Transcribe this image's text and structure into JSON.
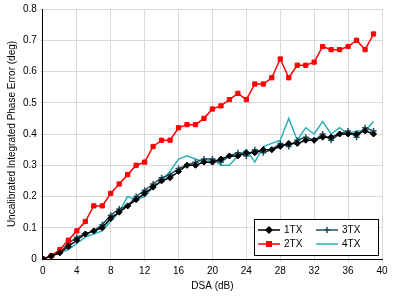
{
  "chart_data": {
    "type": "line",
    "x_label": "DSA (dB)",
    "y_label": "Uncalibrated Integrated Phase Error (deg)",
    "x": [
      0,
      1,
      2,
      3,
      4,
      5,
      6,
      7,
      8,
      9,
      10,
      11,
      12,
      13,
      14,
      15,
      16,
      17,
      18,
      19,
      20,
      21,
      22,
      23,
      24,
      25,
      26,
      27,
      28,
      29,
      30,
      31,
      32,
      33,
      34,
      35,
      36,
      37,
      38,
      39
    ],
    "series": [
      {
        "name": "1TX",
        "color": "#000000",
        "marker": "diamond",
        "values": [
          0,
          0.01,
          0.02,
          0.04,
          0.06,
          0.08,
          0.09,
          0.1,
          0.13,
          0.15,
          0.17,
          0.19,
          0.21,
          0.23,
          0.25,
          0.26,
          0.28,
          0.3,
          0.3,
          0.31,
          0.31,
          0.32,
          0.33,
          0.33,
          0.34,
          0.34,
          0.35,
          0.35,
          0.36,
          0.37,
          0.37,
          0.38,
          0.38,
          0.39,
          0.39,
          0.4,
          0.4,
          0.4,
          0.41,
          0.4
        ]
      },
      {
        "name": "2TX",
        "color": "#ff0000",
        "marker": "square",
        "values": [
          0,
          0.01,
          0.03,
          0.06,
          0.09,
          0.12,
          0.17,
          0.17,
          0.21,
          0.24,
          0.27,
          0.3,
          0.31,
          0.36,
          0.38,
          0.38,
          0.42,
          0.43,
          0.43,
          0.45,
          0.48,
          0.49,
          0.51,
          0.53,
          0.51,
          0.56,
          0.56,
          0.58,
          0.64,
          0.58,
          0.62,
          0.62,
          0.63,
          0.68,
          0.67,
          0.67,
          0.68,
          0.7,
          0.67,
          0.72
        ]
      },
      {
        "name": "3TX",
        "color": "#1f4e5f",
        "marker": "cross",
        "values": [
          0,
          0.01,
          0.02,
          0.05,
          0.07,
          0.08,
          0.09,
          0.11,
          0.14,
          0.16,
          0.17,
          0.2,
          0.22,
          0.24,
          0.26,
          0.27,
          0.29,
          0.3,
          0.31,
          0.32,
          0.32,
          0.31,
          0.33,
          0.34,
          0.33,
          0.35,
          0.34,
          0.35,
          0.37,
          0.36,
          0.38,
          0.39,
          0.38,
          0.4,
          0.38,
          0.4,
          0.41,
          0.39,
          0.42,
          0.41
        ]
      },
      {
        "name": "4TX",
        "color": "#2ab0b8",
        "marker": "none",
        "values": [
          0,
          0.01,
          0.02,
          0.03,
          0.05,
          0.07,
          0.08,
          0.09,
          0.12,
          0.15,
          0.2,
          0.19,
          0.2,
          0.23,
          0.25,
          0.28,
          0.32,
          0.33,
          0.32,
          0.31,
          0.32,
          0.3,
          0.3,
          0.33,
          0.35,
          0.31,
          0.36,
          0.37,
          0.38,
          0.45,
          0.38,
          0.42,
          0.4,
          0.44,
          0.4,
          0.42,
          0.4,
          0.41,
          0.41,
          0.44
        ]
      }
    ],
    "xlim": [
      0,
      40
    ],
    "xticks": [
      0,
      4,
      8,
      12,
      16,
      20,
      24,
      28,
      32,
      36,
      40
    ],
    "ylim": [
      0,
      0.8
    ],
    "yticks": [
      0,
      0.1,
      0.2,
      0.3,
      0.4,
      0.5,
      0.6,
      0.7,
      0.8
    ],
    "grid": true,
    "legend": "lower right"
  }
}
